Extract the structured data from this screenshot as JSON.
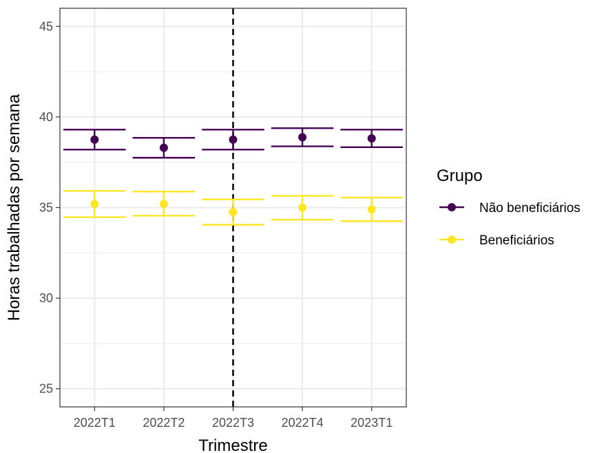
{
  "chart_data": {
    "type": "scatter",
    "xlabel": "Trimestre",
    "ylabel": "Horas trabalhadas por semana",
    "categories": [
      "2022T1",
      "2022T2",
      "2022T3",
      "2022T4",
      "2023T1"
    ],
    "ylim": [
      24,
      46
    ],
    "yticks": [
      25,
      30,
      35,
      40,
      45
    ],
    "grid": true,
    "reference_line": {
      "x": "2022T3",
      "style": "dashed"
    },
    "legend": {
      "title": "Grupo",
      "position": "right"
    },
    "series": [
      {
        "name": "Não beneficiários",
        "color": "#440154",
        "values": [
          38.75,
          38.3,
          38.75,
          38.88,
          38.82
        ],
        "lower": [
          38.2,
          37.75,
          38.2,
          38.38,
          38.33
        ],
        "upper": [
          39.3,
          38.85,
          39.3,
          39.38,
          39.3
        ]
      },
      {
        "name": "Beneficiários",
        "color": "#FDE725",
        "values": [
          35.2,
          35.2,
          34.75,
          35.0,
          34.9
        ],
        "lower": [
          34.47,
          34.55,
          34.05,
          34.33,
          34.25
        ],
        "upper": [
          35.92,
          35.88,
          35.45,
          35.65,
          35.55
        ]
      }
    ]
  }
}
